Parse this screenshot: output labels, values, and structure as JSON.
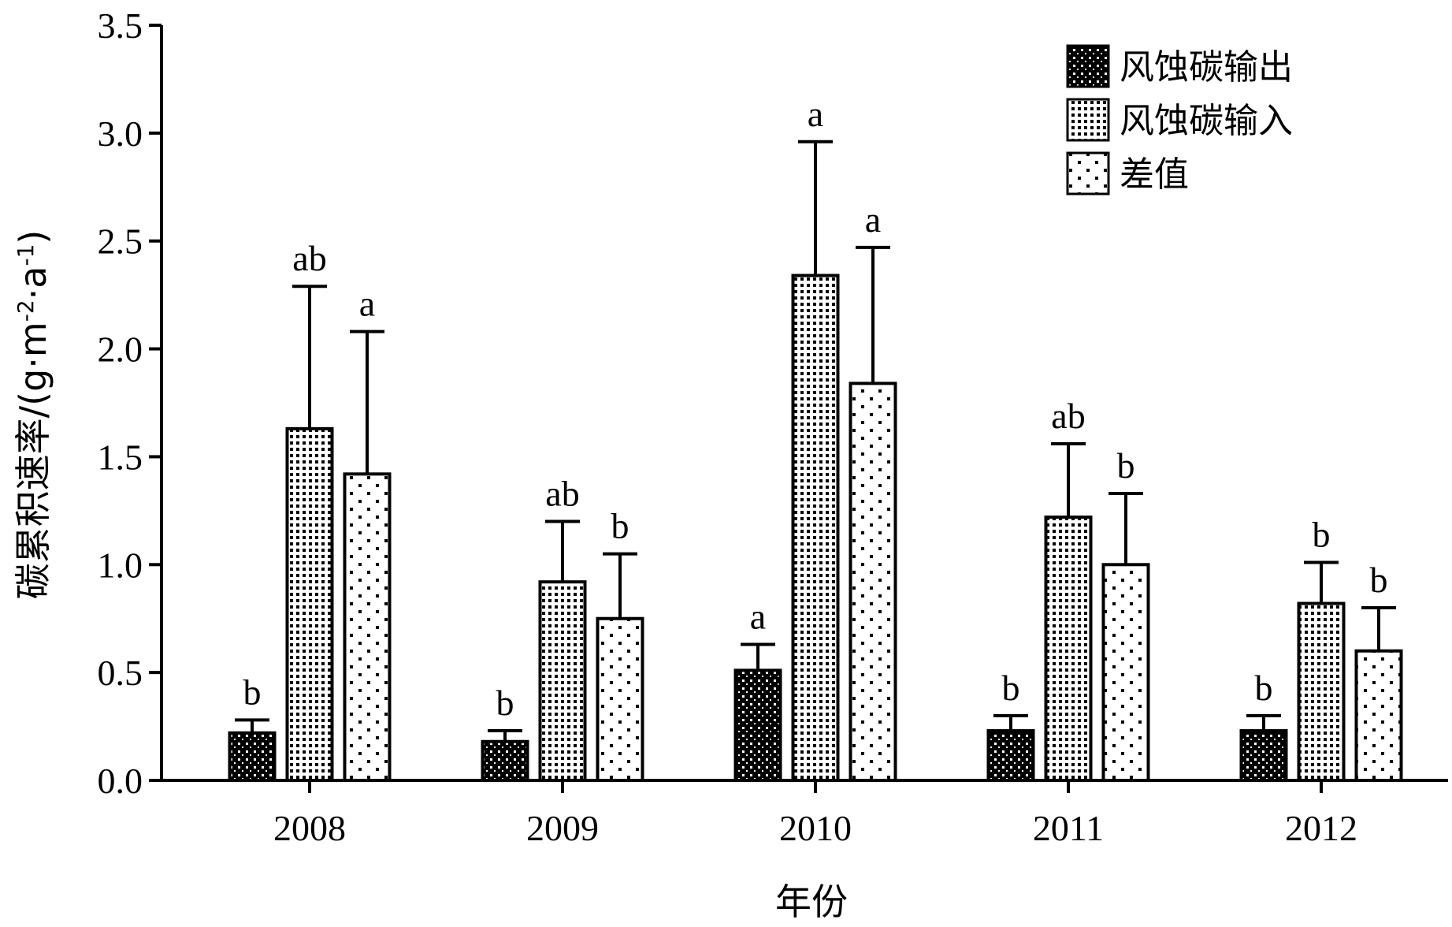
{
  "chart_data": {
    "type": "bar",
    "xlabel": "年份",
    "ylabel": "碳累积速率/(g·m⁻²·a⁻¹)",
    "ylabel_parts": {
      "main": "碳累积速率/(g·m",
      "sup1": "-2",
      "mid": "·a",
      "sup2": "-1",
      "end": ")"
    },
    "ylim": [
      0,
      3.5
    ],
    "yticks": [
      "0.0",
      "0.5",
      "1.0",
      "1.5",
      "2.0",
      "2.5",
      "3.0",
      "3.5"
    ],
    "categories": [
      "2008",
      "2009",
      "2010",
      "2011",
      "2012"
    ],
    "legend_position": "top-right",
    "series": [
      {
        "name": "风蚀碳输出",
        "pattern": "dense-dots-dark",
        "values": [
          0.22,
          0.18,
          0.51,
          0.23,
          0.23
        ],
        "errors": [
          0.06,
          0.05,
          0.12,
          0.07,
          0.07
        ],
        "letters": [
          "b",
          "b",
          "a",
          "b",
          "b"
        ]
      },
      {
        "name": "风蚀碳输入",
        "pattern": "dense-dots-light",
        "values": [
          1.63,
          0.92,
          2.34,
          1.22,
          0.82
        ],
        "errors": [
          0.66,
          0.28,
          0.62,
          0.34,
          0.19
        ],
        "letters": [
          "ab",
          "ab",
          "a",
          "ab",
          "b"
        ]
      },
      {
        "name": "差值",
        "pattern": "sparse-dots",
        "values": [
          1.42,
          0.75,
          1.84,
          1.0,
          0.6
        ],
        "errors": [
          0.66,
          0.3,
          0.63,
          0.33,
          0.2
        ],
        "letters": [
          "a",
          "b",
          "a",
          "b",
          "b"
        ]
      }
    ]
  }
}
